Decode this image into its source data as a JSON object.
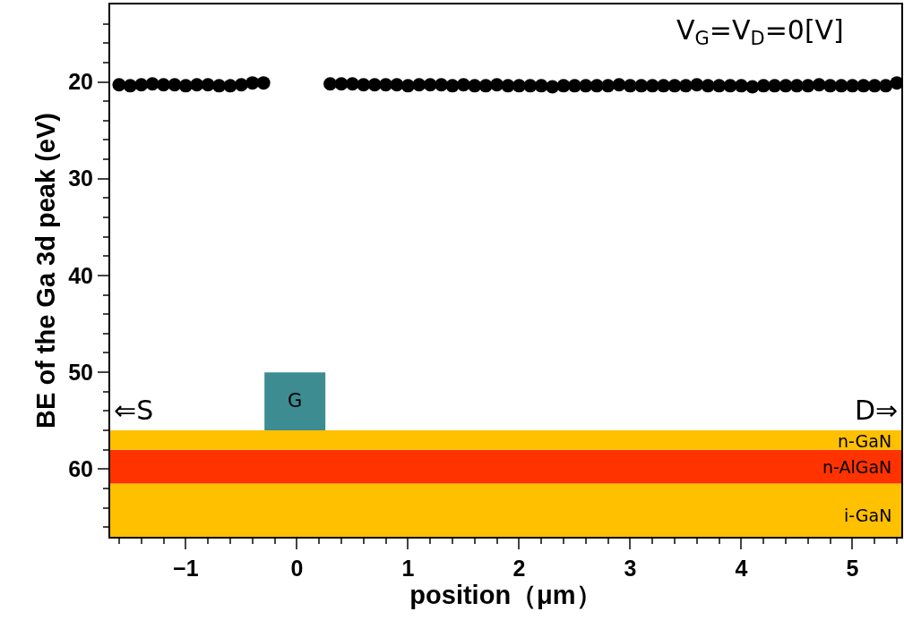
{
  "chart_data": {
    "type": "scatter",
    "xlabel": "position（μm）",
    "ylabel": "BE of the Ga 3d peak (eV)",
    "x": [
      -1.6,
      -1.5,
      -1.4,
      -1.3,
      -1.2,
      -1.1,
      -1.0,
      -0.9,
      -0.8,
      -0.7,
      -0.6,
      -0.5,
      -0.4,
      -0.3,
      0.3,
      0.4,
      0.5,
      0.6,
      0.7,
      0.8,
      0.9,
      1.0,
      1.1,
      1.2,
      1.3,
      1.4,
      1.5,
      1.6,
      1.7,
      1.8,
      1.9,
      2.0,
      2.1,
      2.2,
      2.3,
      2.4,
      2.5,
      2.6,
      2.7,
      2.8,
      2.9,
      3.0,
      3.1,
      3.2,
      3.3,
      3.4,
      3.5,
      3.6,
      3.7,
      3.8,
      3.9,
      4.0,
      4.1,
      4.2,
      4.3,
      4.4,
      4.5,
      4.6,
      4.7,
      4.8,
      4.9,
      5.0,
      5.1,
      5.2,
      5.3,
      5.4
    ],
    "series": [
      {
        "color": "#000000",
        "values": [
          20.3,
          20.4,
          20.3,
          20.2,
          20.3,
          20.3,
          20.4,
          20.3,
          20.3,
          20.4,
          20.4,
          20.3,
          20.1,
          20.1,
          20.2,
          20.2,
          20.2,
          20.3,
          20.3,
          20.3,
          20.3,
          20.4,
          20.3,
          20.3,
          20.3,
          20.4,
          20.3,
          20.4,
          20.4,
          20.3,
          20.4,
          20.4,
          20.4,
          20.4,
          20.5,
          20.4,
          20.4,
          20.4,
          20.4,
          20.4,
          20.3,
          20.4,
          20.4,
          20.4,
          20.4,
          20.4,
          20.4,
          20.3,
          20.4,
          20.4,
          20.4,
          20.4,
          20.5,
          20.4,
          20.4,
          20.4,
          20.4,
          20.4,
          20.3,
          20.4,
          20.4,
          20.4,
          20.4,
          20.4,
          20.4,
          20.1
        ]
      }
    ],
    "marker": "circle",
    "grid": false,
    "xlim": [
      -1.68,
      5.44
    ],
    "ylim": [
      67,
      12
    ],
    "xticks": [
      {
        "value": -1.6,
        "label": null
      },
      {
        "value": -1.4,
        "label": null
      },
      {
        "value": -1.2,
        "label": null
      },
      {
        "value": -1,
        "label": "−1"
      },
      {
        "value": -0.8,
        "label": null
      },
      {
        "value": -0.6,
        "label": null
      },
      {
        "value": -0.4,
        "label": null
      },
      {
        "value": -0.2,
        "label": null
      },
      0,
      {
        "value": 0.2,
        "label": null
      },
      {
        "value": 0.4,
        "label": null
      },
      {
        "value": 0.6,
        "label": null
      },
      {
        "value": 0.8,
        "label": null
      },
      1,
      {
        "value": 1.2,
        "label": null
      },
      {
        "value": 1.4,
        "label": null
      },
      {
        "value": 1.6,
        "label": null
      },
      {
        "value": 1.8,
        "label": null
      },
      2,
      {
        "value": 2.2,
        "label": null
      },
      {
        "value": 2.4,
        "label": null
      },
      {
        "value": 2.6,
        "label": null
      },
      {
        "value": 2.8,
        "label": null
      },
      3,
      {
        "value": 3.2,
        "label": null
      },
      {
        "value": 3.4,
        "label": null
      },
      {
        "value": 3.6,
        "label": null
      },
      {
        "value": 3.8,
        "label": null
      },
      4,
      {
        "value": 4.2,
        "label": null
      },
      {
        "value": 4.4,
        "label": null
      },
      {
        "value": 4.6,
        "label": null
      },
      {
        "value": 4.8,
        "label": null
      },
      5,
      {
        "value": 5.2,
        "label": null
      },
      {
        "value": 5.4,
        "label": null
      }
    ],
    "yticks": [
      {
        "value": 14,
        "label": null
      },
      {
        "value": 16,
        "label": null
      },
      {
        "value": 18,
        "label": null
      },
      20,
      {
        "value": 22,
        "label": null
      },
      {
        "value": 24,
        "label": null
      },
      {
        "value": 26,
        "label": null
      },
      {
        "value": 28,
        "label": null
      },
      30,
      {
        "value": 32,
        "label": null
      },
      {
        "value": 34,
        "label": null
      },
      {
        "value": 36,
        "label": null
      },
      {
        "value": 38,
        "label": null
      },
      40,
      {
        "value": 42,
        "label": null
      },
      {
        "value": 44,
        "label": null
      },
      {
        "value": 46,
        "label": null
      },
      {
        "value": 48,
        "label": null
      },
      50,
      {
        "value": 52,
        "label": null
      },
      {
        "value": 54,
        "label": null
      },
      {
        "value": 56,
        "label": null
      },
      {
        "value": 58,
        "label": null
      },
      60,
      {
        "value": 62,
        "label": null
      },
      {
        "value": 64,
        "label": null
      },
      {
        "value": 66,
        "label": null
      }
    ],
    "annotations": [
      "V$_{G}$=V$_{D}$=0[V]",
      "⇐S",
      "D⇒",
      "G",
      "n-GaN",
      "n-AlGaN",
      "i-GaN"
    ]
  }
}
